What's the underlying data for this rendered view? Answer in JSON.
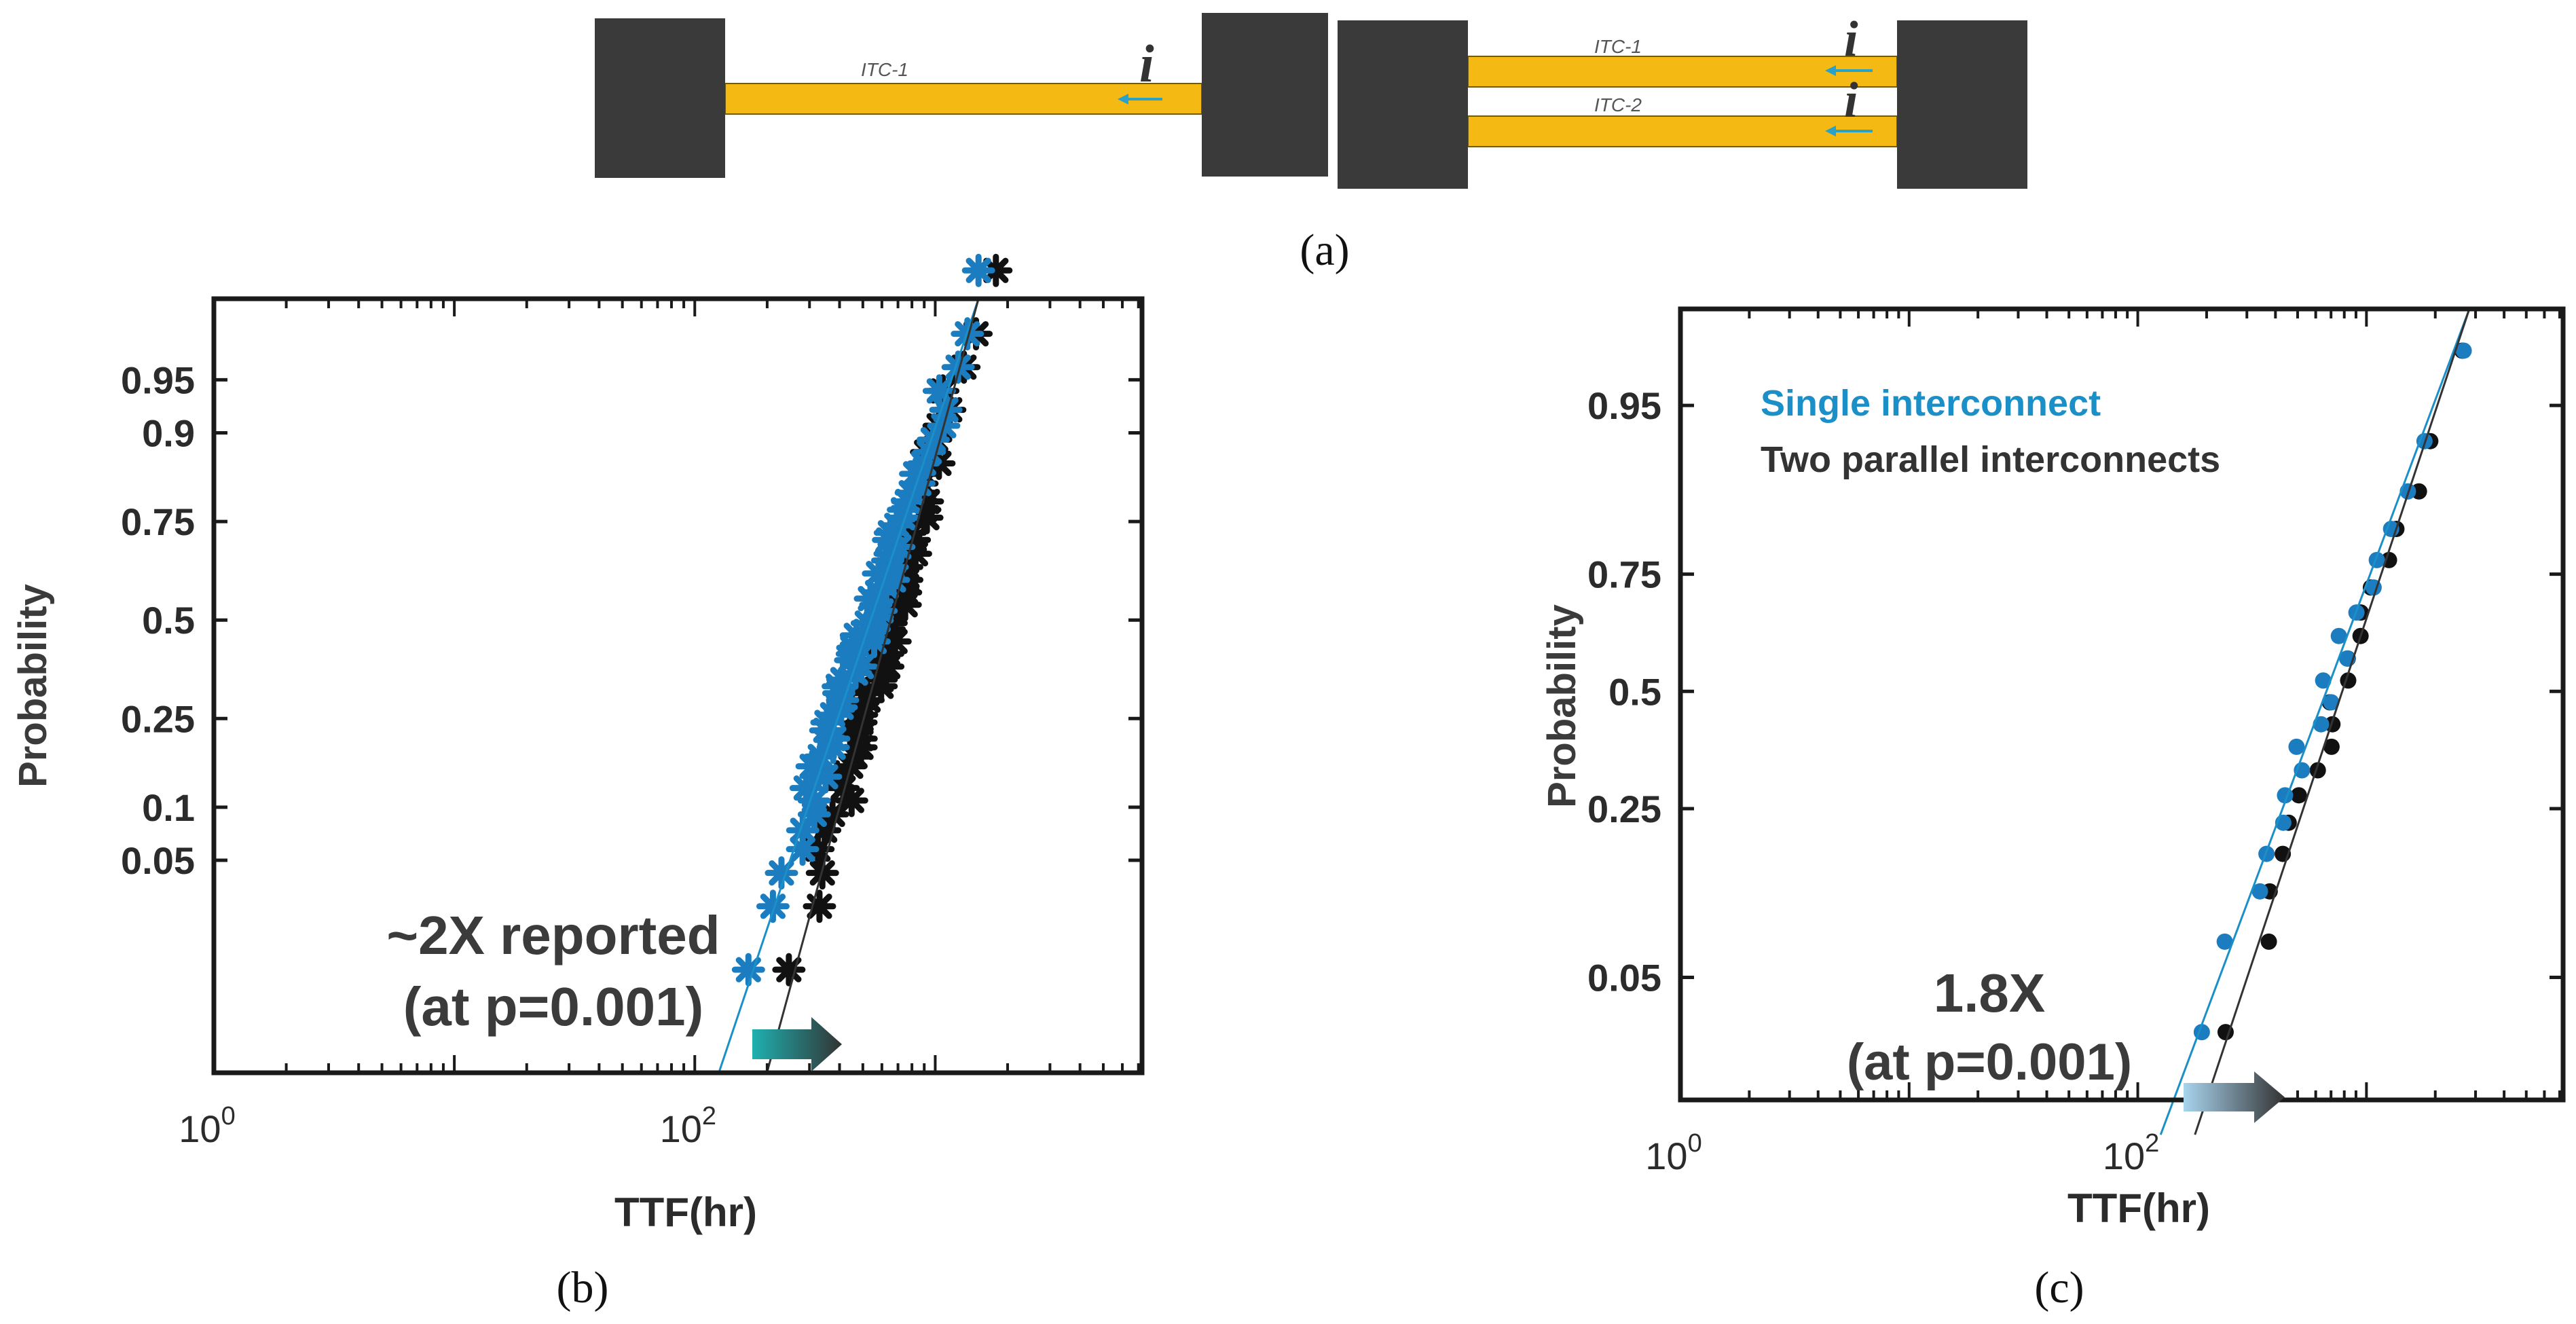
{
  "colors": {
    "pad": "#3a3a3a",
    "wire": "#f5b914",
    "arrow": "#2aa2c8",
    "single": "#1b7cc0",
    "parallel": "#111111",
    "axis": "#1a1a1a",
    "text": "#3b3b3b"
  },
  "schematic": {
    "label": "(a)",
    "left": {
      "wire_labels": [
        "ITC-1"
      ],
      "current_label": "i"
    },
    "right": {
      "wire_labels": [
        "ITC-1",
        "ITC-2"
      ],
      "current_label": "i"
    }
  },
  "chart_data": [
    {
      "type": "scatter",
      "panel_label": "(b)",
      "title": "",
      "xlabel": "TTF(hr)",
      "ylabel": "Probability",
      "x_scale": "log",
      "xlim_log10": [
        0,
        3.86
      ],
      "ylim_z": [
        -3.1,
        2.2
      ],
      "x_ticks": [
        {
          "log10": 0,
          "base": "10",
          "exp": "0"
        },
        {
          "log10": 2,
          "base": "10",
          "exp": "2"
        }
      ],
      "y_ticks": [
        {
          "p": 0.05,
          "label": "0.05"
        },
        {
          "p": 0.1,
          "label": "0.1"
        },
        {
          "p": 0.25,
          "label": "0.25"
        },
        {
          "p": 0.5,
          "label": "0.5"
        },
        {
          "p": 0.75,
          "label": "0.75"
        },
        {
          "p": 0.9,
          "label": "0.9"
        },
        {
          "p": 0.95,
          "label": "0.95"
        }
      ],
      "grid": false,
      "marker": "asterisk",
      "annotation": {
        "lines": [
          "~2X reported",
          "(at p=0.001)"
        ],
        "ratio": 2.0
      },
      "series": [
        {
          "name": "Single interconnect",
          "color": "#1b7cc0",
          "count": 60,
          "log10_ttf_range": [
            2.1,
            3.18
          ],
          "fit": [
            [
              2.1,
              -3.1
            ],
            [
              3.18,
              2.2
            ]
          ]
        },
        {
          "name": "Two parallel interconnects",
          "color": "#111111",
          "count": 60,
          "log10_ttf_range": [
            2.33,
            3.28
          ],
          "fit": [
            [
              2.3,
              -3.1
            ],
            [
              3.18,
              2.2
            ]
          ]
        }
      ]
    },
    {
      "type": "scatter",
      "panel_label": "(c)",
      "title": "",
      "xlabel": "TTF(hr)",
      "ylabel": "Probability",
      "x_scale": "log",
      "xlim_log10": [
        0,
        3.86
      ],
      "ylim_z": [
        -2.35,
        2.2
      ],
      "x_ticks": [
        {
          "log10": 0,
          "base": "10",
          "exp": "0"
        },
        {
          "log10": 2,
          "base": "10",
          "exp": "2"
        }
      ],
      "y_ticks": [
        {
          "p": 0.05,
          "label": "0.05"
        },
        {
          "p": 0.25,
          "label": "0.25"
        },
        {
          "p": 0.5,
          "label": "0.5"
        },
        {
          "p": 0.75,
          "label": "0.75"
        },
        {
          "p": 0.95,
          "label": "0.95"
        }
      ],
      "grid": false,
      "marker": "dot",
      "legend_position": "top-left",
      "annotation": {
        "lines": [
          "1.8X",
          "(at p=0.001)"
        ],
        "ratio": 1.8
      },
      "series": [
        {
          "name": "Single interconnect",
          "color": "#1b7cc0",
          "count": 20,
          "log10_ttf_range": [
            2.28,
            3.45
          ],
          "fit": [
            [
              2.1,
              -2.55
            ],
            [
              3.45,
              2.2
            ]
          ]
        },
        {
          "name": "Two parallel interconnects",
          "color": "#111111",
          "count": 20,
          "log10_ttf_range": [
            2.38,
            3.42
          ],
          "fit": [
            [
              2.25,
              -2.55
            ],
            [
              3.45,
              2.2
            ]
          ]
        }
      ]
    }
  ]
}
